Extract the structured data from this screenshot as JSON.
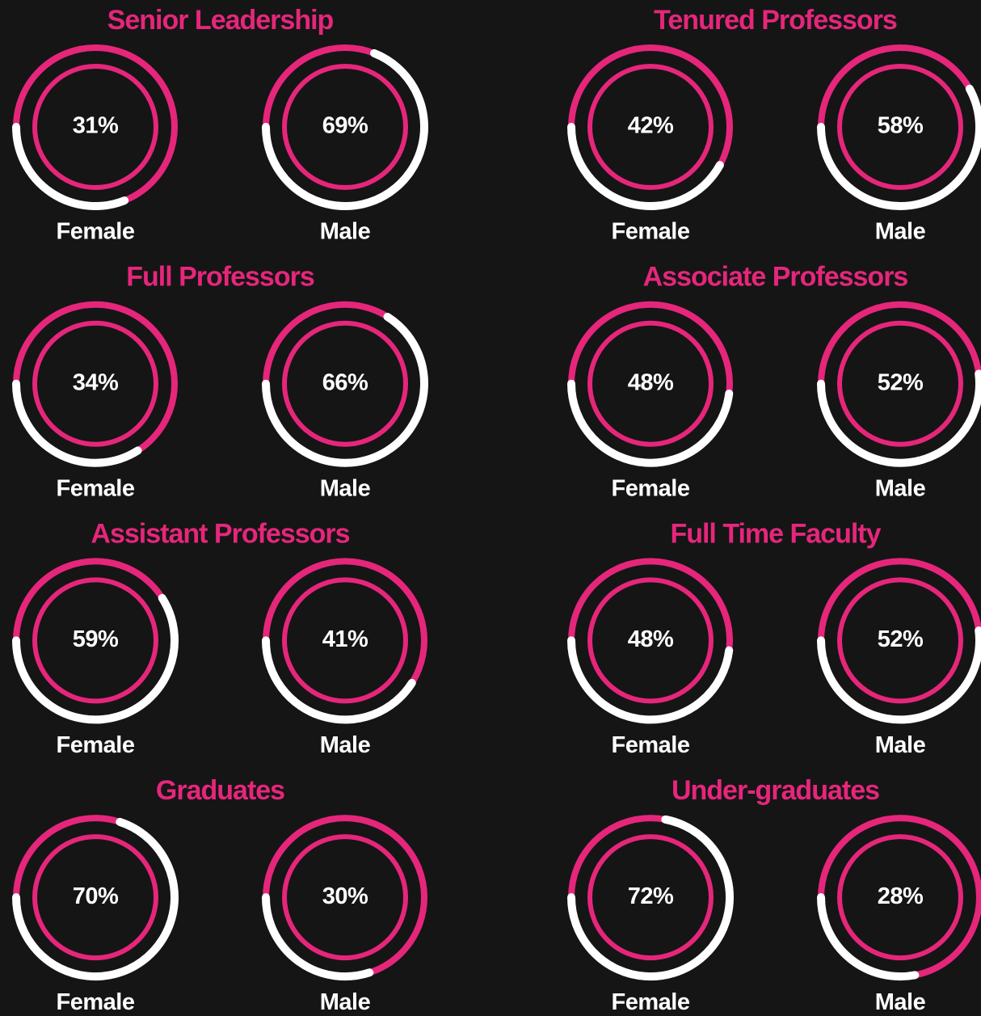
{
  "chart_data": [
    {
      "type": "gauge",
      "title": "Senior Leadership",
      "categories": [
        "Female",
        "Male"
      ],
      "values": [
        31,
        69
      ],
      "value_labels": [
        "31%",
        "69%"
      ],
      "color": "#ffffff",
      "base_color": "#e5267b"
    },
    {
      "type": "gauge",
      "title": "Tenured Professors",
      "categories": [
        "Female",
        "Male"
      ],
      "values": [
        42,
        58
      ],
      "value_labels": [
        "42%",
        "58%"
      ],
      "color": "#ffffff",
      "base_color": "#e5267b"
    },
    {
      "type": "gauge",
      "title": "Full Professors",
      "categories": [
        "Female",
        "Male"
      ],
      "values": [
        34,
        66
      ],
      "value_labels": [
        "34%",
        "66%"
      ],
      "color": "#ffffff",
      "base_color": "#e5267b"
    },
    {
      "type": "gauge",
      "title": "Associate Professors",
      "categories": [
        "Female",
        "Male"
      ],
      "values": [
        48,
        52
      ],
      "value_labels": [
        "48%",
        "52%"
      ],
      "color": "#ffffff",
      "base_color": "#e5267b"
    },
    {
      "type": "gauge",
      "title": "Assistant Professors",
      "categories": [
        "Female",
        "Male"
      ],
      "values": [
        59,
        41
      ],
      "value_labels": [
        "59%",
        "41%"
      ],
      "color": "#ffffff",
      "base_color": "#e5267b"
    },
    {
      "type": "gauge",
      "title": "Full Time Faculty",
      "categories": [
        "Female",
        "Male"
      ],
      "values": [
        48,
        52
      ],
      "value_labels": [
        "48%",
        "52%"
      ],
      "color": "#ffffff",
      "base_color": "#e5267b"
    },
    {
      "type": "gauge",
      "title": "Graduates",
      "categories": [
        "Female",
        "Male"
      ],
      "values": [
        70,
        30
      ],
      "value_labels": [
        "70%",
        "30%"
      ],
      "color": "#ffffff",
      "base_color": "#e5267b"
    },
    {
      "type": "gauge",
      "title": "Under-graduates",
      "categories": [
        "Female",
        "Male"
      ],
      "values": [
        72,
        28
      ],
      "value_labels": [
        "72%",
        "28%"
      ],
      "color": "#ffffff",
      "base_color": "#e5267b"
    }
  ]
}
